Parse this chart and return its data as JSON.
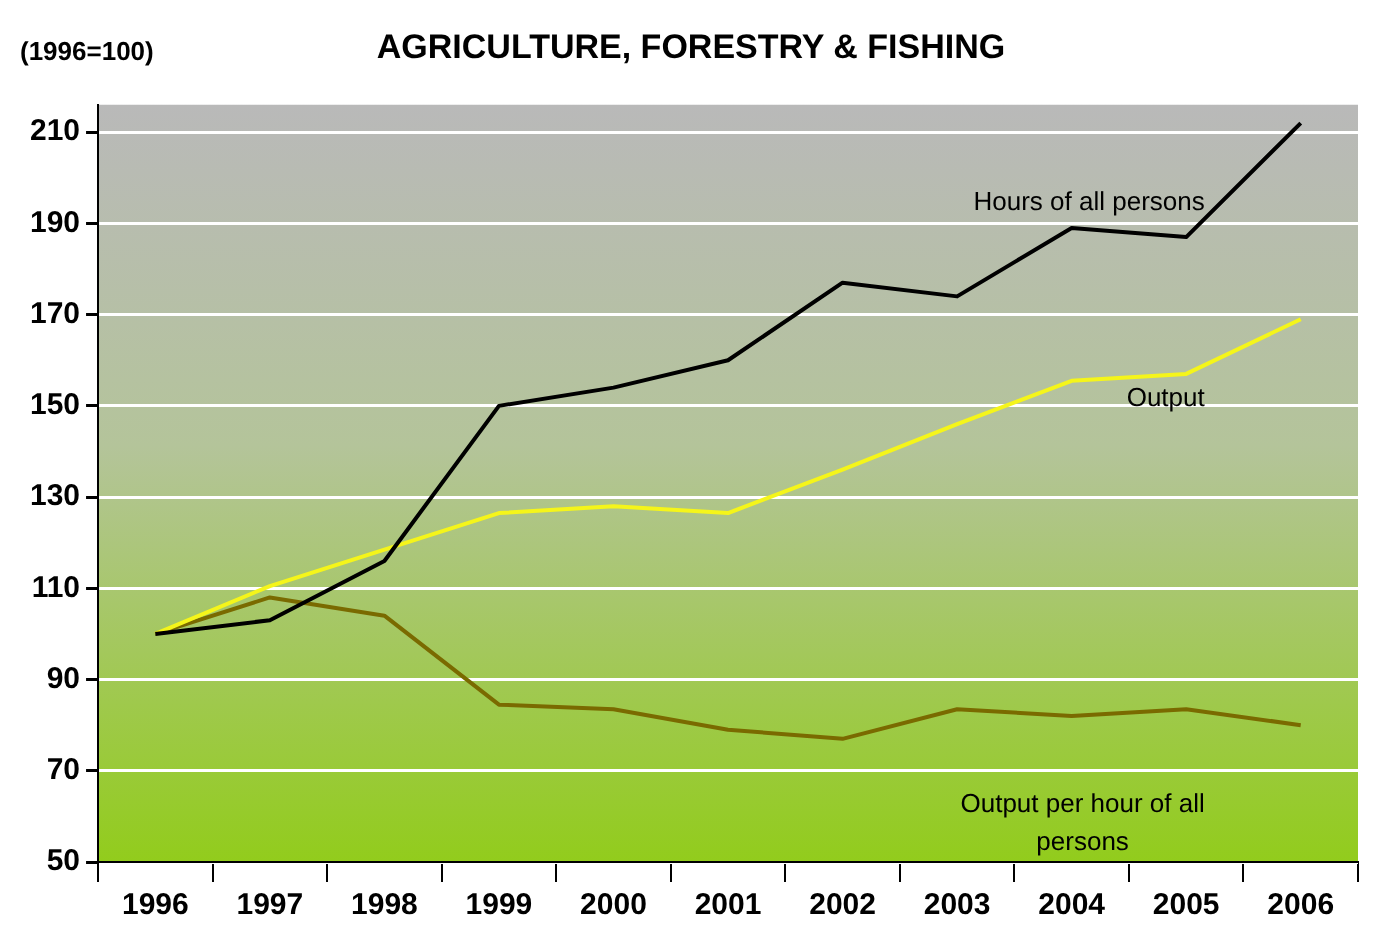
{
  "chart_data": {
    "type": "line",
    "title": "AGRICULTURE, FORESTRY & FISHING",
    "ylabel": "(1996=100)",
    "categories": [
      "1996",
      "1997",
      "1998",
      "1999",
      "2000",
      "2001",
      "2002",
      "2003",
      "2004",
      "2005",
      "2006"
    ],
    "series": [
      {
        "name": "Hours of all persons",
        "color": "#000000",
        "values": [
          100,
          103,
          116,
          150,
          154,
          160,
          177,
          174,
          189,
          187,
          212
        ]
      },
      {
        "name": "Output",
        "color": "#f5f51a",
        "values": [
          100,
          110.5,
          118.5,
          126.5,
          128,
          126.5,
          136,
          146,
          155.5,
          157,
          169
        ]
      },
      {
        "name": "Output per hour of all persons",
        "color": "#7a6a00",
        "values": [
          100,
          108,
          104,
          84.5,
          83.5,
          79,
          77,
          83.5,
          82,
          83.5,
          80
        ]
      }
    ],
    "ylim": [
      50,
      216
    ],
    "yticks": [
      50,
      70,
      90,
      110,
      130,
      150,
      170,
      190,
      210
    ],
    "grid": "y",
    "legend": false,
    "marker": "none",
    "line_style": "solid"
  }
}
